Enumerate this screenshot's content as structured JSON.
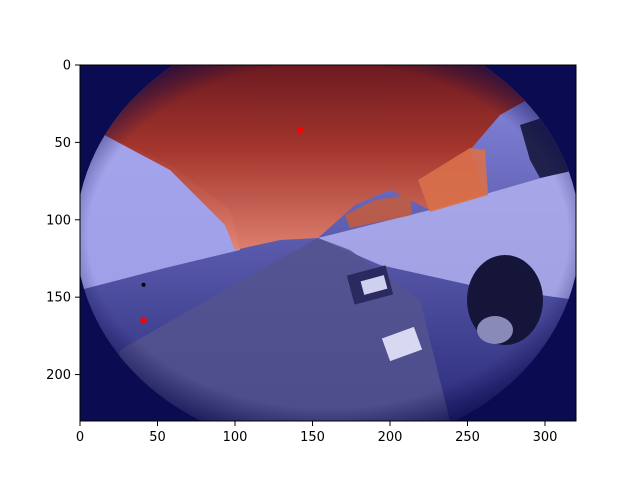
{
  "figure": {
    "x_ticks": [
      "0",
      "50",
      "100",
      "150",
      "200",
      "250",
      "300"
    ],
    "y_ticks": [
      "0",
      "50",
      "100",
      "150",
      "200"
    ],
    "xlim": [
      0,
      320
    ],
    "ylim": [
      230,
      0
    ],
    "overlay_colors": {
      "sky_segment": "#c0392b",
      "ground_segment": "#6a6ae8",
      "vignette": "#0a0a4a"
    },
    "markers": [
      {
        "x": 142,
        "y": 42,
        "color": "#ff0000"
      },
      {
        "x": 41,
        "y": 165,
        "color": "#ff0000"
      },
      {
        "x": 41,
        "y": 142,
        "color": "#000000"
      }
    ],
    "description_scene": "fisheye road scene with segmentation overlay"
  }
}
